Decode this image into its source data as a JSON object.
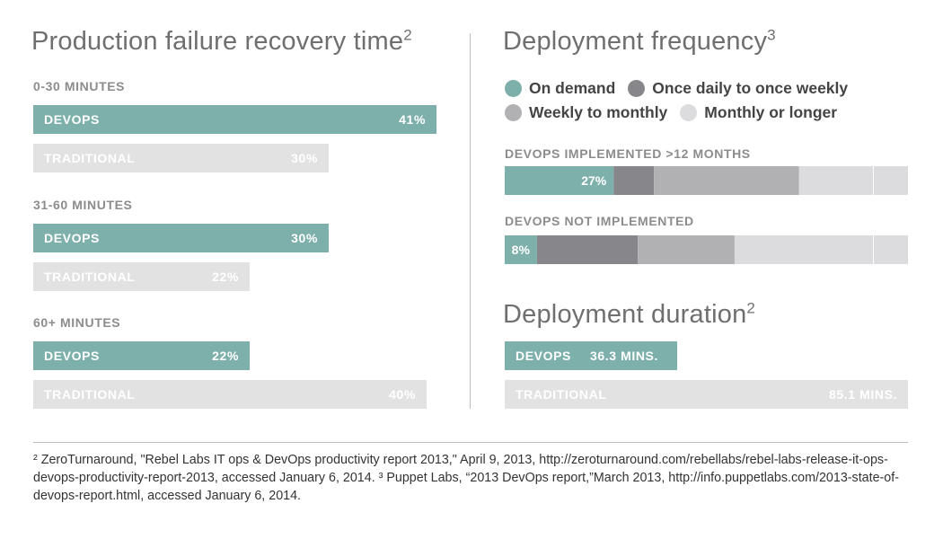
{
  "recovery": {
    "title": "Production failure recovery time",
    "title_sup": "2",
    "groups": [
      {
        "label": "0-30 MINUTES",
        "devops": {
          "name": "DEVOPS",
          "value_label": "41%"
        },
        "trad": {
          "name": "TRADITIONAL",
          "value_label": "30%"
        }
      },
      {
        "label": "31-60 MINUTES",
        "devops": {
          "name": "DEVOPS",
          "value_label": "30%"
        },
        "trad": {
          "name": "TRADITIONAL",
          "value_label": "22%"
        }
      },
      {
        "label": "60+ MINUTES",
        "devops": {
          "name": "DEVOPS",
          "value_label": "22%"
        },
        "trad": {
          "name": "TRADITIONAL",
          "value_label": "40%"
        }
      }
    ]
  },
  "frequency": {
    "title": "Deployment frequency",
    "title_sup": "3",
    "legend": [
      {
        "label": "On demand",
        "color": "#7eb0ab"
      },
      {
        "label": "Once daily to once weekly",
        "color": "#87878b"
      },
      {
        "label": "Weekly to monthly",
        "color": "#b1b1b4"
      },
      {
        "label": "Monthly or longer",
        "color": "#dcdcde"
      }
    ],
    "rows": [
      {
        "label": "DEVOPS IMPLEMENTED >12 MONTHS",
        "first_label": "27%"
      },
      {
        "label": "DEVOPS NOT IMPLEMENTED",
        "first_label": "8%"
      }
    ]
  },
  "duration": {
    "title": "Deployment duration",
    "title_sup": "2",
    "devops": {
      "name": "DEVOPS",
      "value_label": "36.3 MINS."
    },
    "trad": {
      "name": "TRADITIONAL",
      "value_label": "85.1 MINS."
    }
  },
  "footnote": "² ZeroTurnaround, \"Rebel Labs IT ops & DevOps productivity report 2013,\" April 9, 2013, http://zeroturnaround.com/rebellabs/rebel-labs-release-it-ops-devops-productivity-report-2013, accessed January 6, 2014. ³ Puppet Labs, “2013 DevOps report,”March 2013, http://info.puppetlabs.com/2013-state-of-devops-report.html, accessed January 6, 2014.",
  "chart_data": [
    {
      "type": "bar",
      "title": "Production failure recovery time",
      "categories": [
        "0-30 MINUTES",
        "31-60 MINUTES",
        "60+ MINUTES"
      ],
      "series": [
        {
          "name": "DEVOPS",
          "values": [
            41,
            30,
            22
          ]
        },
        {
          "name": "TRADITIONAL",
          "values": [
            30,
            22,
            40
          ]
        }
      ],
      "ylim": [
        0,
        42
      ]
    },
    {
      "type": "bar",
      "title": "Deployment frequency",
      "categories": [
        "DEVOPS IMPLEMENTED >12 MONTHS",
        "DEVOPS NOT IMPLEMENTED"
      ],
      "series": [
        {
          "name": "On demand",
          "values": [
            27,
            8
          ]
        },
        {
          "name": "Once daily to once weekly",
          "values": [
            10,
            25
          ]
        },
        {
          "name": "Weekly to monthly",
          "values": [
            36,
            24
          ]
        },
        {
          "name": "Monthly or longer",
          "values": [
            27,
            43
          ]
        }
      ],
      "ylim": [
        0,
        100
      ]
    },
    {
      "type": "bar",
      "title": "Deployment duration",
      "categories": [
        "DEVOPS",
        "TRADITIONAL"
      ],
      "values": [
        36.3,
        85.1
      ],
      "ylim": [
        0,
        85.1
      ]
    }
  ]
}
